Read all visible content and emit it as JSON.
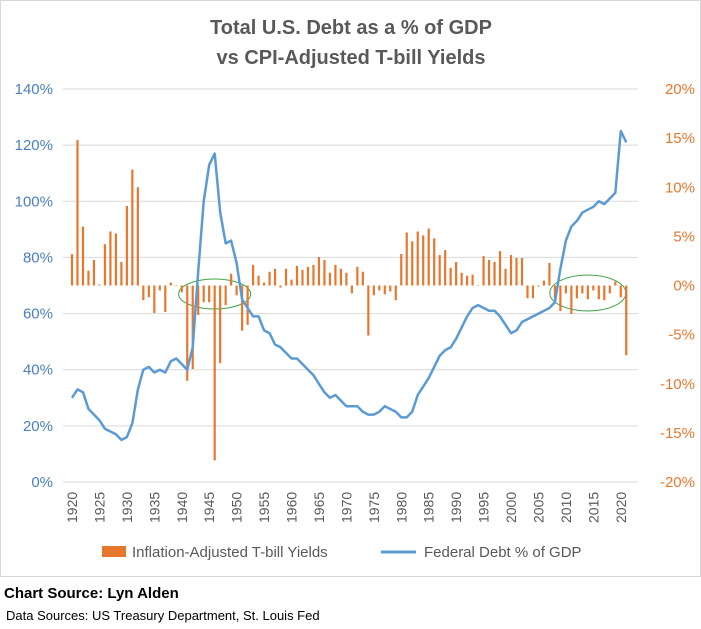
{
  "chart_data": {
    "type": "bar+line",
    "title_lines": [
      "Total U.S. Debt as a % of GDP",
      "vs CPI-Adjusted T-bill Yields"
    ],
    "left_axis": {
      "ticks": [
        "0%",
        "20%",
        "40%",
        "60%",
        "80%",
        "100%",
        "120%",
        "140%"
      ],
      "min": 0,
      "max": 140,
      "color": "#4a7fc1"
    },
    "right_axis": {
      "ticks": [
        "-20%",
        "-15%",
        "-10%",
        "-5%",
        "0%",
        "5%",
        "10%",
        "15%",
        "20%"
      ],
      "min": -20,
      "max": 20,
      "color": "#e8772e"
    },
    "x_ticks": [
      "1920",
      "1925",
      "1930",
      "1935",
      "1940",
      "1945",
      "1950",
      "1955",
      "1960",
      "1965",
      "1970",
      "1975",
      "1980",
      "1985",
      "1990",
      "1995",
      "2000",
      "2005",
      "2010",
      "2015",
      "2020"
    ],
    "legend": [
      {
        "name": "Inflation-Adjusted T-bill Yields",
        "type": "bar",
        "color": "#e8772e"
      },
      {
        "name": "Federal Debt % of GDP",
        "type": "line",
        "color": "#5b9bd5"
      }
    ],
    "bar_series": {
      "name": "Inflation-Adjusted T-bill Yields",
      "color": "#e8772e",
      "years": [
        1920,
        1921,
        1922,
        1923,
        1924,
        1925,
        1926,
        1927,
        1928,
        1929,
        1930,
        1931,
        1932,
        1933,
        1934,
        1935,
        1936,
        1937,
        1938,
        1939,
        1940,
        1941,
        1942,
        1943,
        1944,
        1945,
        1946,
        1947,
        1948,
        1949,
        1950,
        1951,
        1952,
        1953,
        1954,
        1955,
        1956,
        1957,
        1958,
        1959,
        1960,
        1961,
        1962,
        1963,
        1964,
        1965,
        1966,
        1967,
        1968,
        1969,
        1970,
        1971,
        1972,
        1973,
        1974,
        1975,
        1976,
        1977,
        1978,
        1979,
        1980,
        1981,
        1982,
        1983,
        1984,
        1985,
        1986,
        1987,
        1988,
        1989,
        1990,
        1991,
        1992,
        1993,
        1994,
        1995,
        1996,
        1997,
        1998,
        1999,
        2000,
        2001,
        2002,
        2003,
        2004,
        2005,
        2006,
        2007,
        2008,
        2009,
        2010,
        2011,
        2012,
        2013,
        2014,
        2015,
        2016,
        2017,
        2018,
        2019,
        2020,
        2021
      ],
      "values": [
        3.2,
        14.8,
        6,
        1.5,
        2.6,
        0.1,
        4.2,
        5.5,
        5.3,
        2.4,
        8.1,
        11.8,
        10,
        -1.5,
        -1.2,
        -2.8,
        -0.5,
        -2.7,
        0.3,
        0,
        -0.7,
        -9.7,
        -8.5,
        -3,
        -1.7,
        -1.7,
        -17.8,
        -7.9,
        -2,
        1.2,
        -1,
        -4.6,
        -4,
        2.1,
        1,
        0.3,
        1.4,
        1.7,
        -0.2,
        1.7,
        0.6,
        2,
        1.6,
        1.9,
        2.1,
        2.9,
        2.6,
        1.3,
        2.1,
        1.7,
        1.3,
        -0.8,
        1.9,
        1.4,
        -5.1,
        -1,
        -0.5,
        -0.9,
        -0.6,
        -1.5,
        3.2,
        5.4,
        4.5,
        5.5,
        5.1,
        5.8,
        4.8,
        3.1,
        3.6,
        1.8,
        2.4,
        1.3,
        1,
        1.1,
        0,
        3,
        2.6,
        2.4,
        3.5,
        1.7,
        3.1,
        2.8,
        2.8,
        -1.3,
        -1.3,
        -0.1,
        0.5,
        2.3,
        -1.3,
        -2.6,
        -0.8,
        -2.9,
        -1.3,
        -0.8,
        -1.4,
        -0.5,
        -1.4,
        -1.5,
        -0.8,
        0.4,
        -1.2,
        -7.1
      ]
    },
    "line_series": {
      "name": "Federal Debt % of GDP",
      "color": "#5b9bd5",
      "years": [
        1920,
        1921,
        1922,
        1923,
        1924,
        1925,
        1926,
        1927,
        1928,
        1929,
        1930,
        1931,
        1932,
        1933,
        1934,
        1935,
        1936,
        1937,
        1938,
        1939,
        1940,
        1941,
        1942,
        1943,
        1944,
        1945,
        1946,
        1947,
        1948,
        1949,
        1950,
        1951,
        1952,
        1953,
        1954,
        1955,
        1956,
        1957,
        1958,
        1959,
        1960,
        1961,
        1962,
        1963,
        1964,
        1965,
        1966,
        1967,
        1968,
        1969,
        1970,
        1971,
        1972,
        1973,
        1974,
        1975,
        1976,
        1977,
        1978,
        1979,
        1980,
        1981,
        1982,
        1983,
        1984,
        1985,
        1986,
        1987,
        1988,
        1989,
        1990,
        1991,
        1992,
        1993,
        1994,
        1995,
        1996,
        1997,
        1998,
        1999,
        2000,
        2001,
        2002,
        2003,
        2004,
        2005,
        2006,
        2007,
        2008,
        2009,
        2010,
        2011,
        2012,
        2013,
        2014,
        2015,
        2016,
        2017,
        2018,
        2019,
        2020,
        2021
      ],
      "values": [
        30,
        33,
        32,
        26,
        24,
        22,
        19,
        18,
        17,
        15,
        16,
        21,
        33,
        40,
        41,
        39,
        40,
        39,
        43,
        44,
        42,
        40,
        48,
        75,
        100,
        113,
        117,
        96,
        85,
        86,
        78,
        65,
        62,
        59,
        59,
        54,
        53,
        49,
        48,
        46,
        44,
        44,
        42,
        40,
        38,
        35,
        32,
        30,
        31,
        29,
        27,
        27,
        27,
        25,
        24,
        24,
        25,
        27,
        26,
        25,
        23,
        23,
        25,
        31,
        34,
        37,
        41,
        45,
        47,
        48,
        51,
        55,
        59,
        62,
        63,
        62,
        61,
        61,
        59,
        56,
        53,
        54,
        57,
        58,
        59,
        60,
        61,
        62,
        64,
        76,
        86,
        91,
        93,
        96,
        97,
        98,
        100,
        99,
        101,
        103,
        125,
        121
      ]
    }
  },
  "footer": {
    "source": "Chart Source: Lyn Alden",
    "data_sources": "Data Sources: US Treasury Department, St. Louis Fed"
  }
}
